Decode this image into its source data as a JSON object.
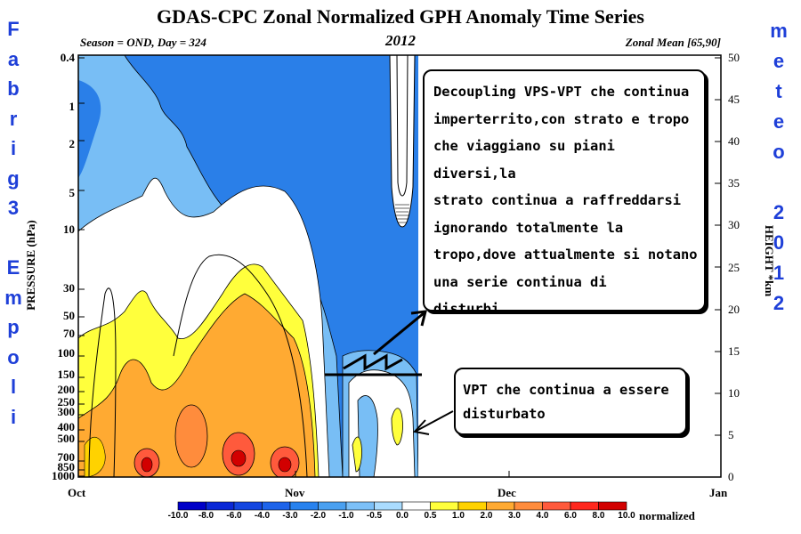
{
  "chart_data": {
    "type": "heatmap",
    "title": "GDAS-CPC Zonal Normalized GPH Anomaly Time Series",
    "subtitle_left": "Season = OND, Day = 324",
    "subtitle_center": "2012",
    "subtitle_right": "Zonal Mean [65,90]",
    "ylabel": "PRESSURE (hPa)",
    "y2label": "HEIGHT *km",
    "xticks": [
      "Oct",
      "Nov",
      "Dec",
      "Jan"
    ],
    "yticks": [
      "0.4",
      "1",
      "2",
      "5",
      "10",
      "30",
      "50",
      "70",
      "100",
      "150",
      "200",
      "250",
      "300",
      "400",
      "500",
      "700",
      "850",
      "1000"
    ],
    "y2ticks": [
      "0",
      "5",
      "10",
      "15",
      "20",
      "25",
      "30",
      "35",
      "40",
      "45",
      "50"
    ],
    "ylim": [
      1000,
      0.4
    ],
    "y2lim": [
      0,
      50
    ],
    "colorbar_levels": [
      "-10.0",
      "-8.0",
      "-6.0",
      "-4.0",
      "-3.0",
      "-2.0",
      "-1.0",
      "-0.5",
      "0.0",
      "0.5",
      "1.0",
      "2.0",
      "3.0",
      "4.0",
      "6.0",
      "8.0",
      "10.0"
    ],
    "colorbar_colors": [
      "#0000c8",
      "#0a28d6",
      "#1446e0",
      "#1e64ea",
      "#2882ee",
      "#4aa0f0",
      "#7cc0f8",
      "#aadcff",
      "#ffffff",
      "#ffffff",
      "#ffff3c",
      "#ffd200",
      "#ffaa32",
      "#ff8c3c",
      "#ff5a3c",
      "#ff281e",
      "#d20000"
    ],
    "colorbar_units": "normalized",
    "annotation_main": [
      "Decoupling VPS-VPT che continua",
      "imperterrito,con strato e tropo",
      "che viaggiano su piani diversi,la",
      "strato continua a raffreddarsi",
      "ignorando totalmente la",
      "tropo,dove attualmente si notano",
      "una serie continua di disturbi..."
    ],
    "annotation_tropo": [
      "VPT che continua a essere",
      "disturbato"
    ]
  },
  "watermark": {
    "left": [
      "F",
      "a",
      "b",
      "r",
      "i",
      "g",
      "3",
      "",
      "E",
      "m",
      "p",
      "o",
      "l",
      "i"
    ],
    "right": [
      "m",
      "e",
      "t",
      "e",
      "o",
      "",
      "2",
      "0",
      "1",
      "2"
    ]
  },
  "colors": {
    "watermark": "#1e3fd8",
    "deep_blue": "#2a7fe8",
    "light_blue": "#78bef5"
  }
}
